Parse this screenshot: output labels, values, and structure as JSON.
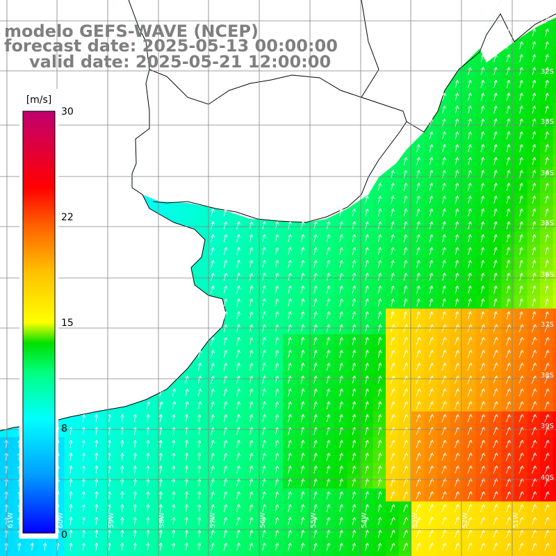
{
  "title": {
    "line1": "modelo GEFS-WAVE (NCEP)",
    "line2": "forecast date: 2025-05-13 00:00:00",
    "line3": "valid date: 2025-05-21 12:00:00"
  },
  "colorbar": {
    "unit": "[m/s]",
    "ticks": [
      "30",
      "22",
      "15",
      "8",
      "0"
    ],
    "stops": [
      "#0000ff",
      "#00b4ff",
      "#00ffff",
      "#00ff80",
      "#00e600",
      "#80ff00",
      "#ffff00",
      "#ffa000",
      "#ff3000",
      "#ff0000",
      "#c00060"
    ]
  },
  "map": {
    "variable": "wind speed",
    "land_color": "#ffffff",
    "coast_color": "#000000",
    "grid_color": "#808080",
    "lat_labels": [
      "32S",
      "33S",
      "34S",
      "35S",
      "36S",
      "37S",
      "38S",
      "39S",
      "40S"
    ],
    "lon_labels": [
      "61W",
      "60W",
      "59W",
      "58W",
      "57W",
      "56W",
      "55W",
      "54W",
      "53W",
      "52W",
      "51W"
    ],
    "arrow_color": "#ffffff"
  }
}
